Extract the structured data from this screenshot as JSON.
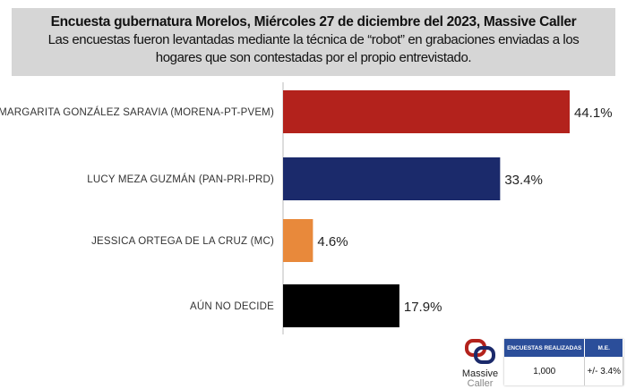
{
  "header": {
    "title": "Encuesta gubernatura Morelos, Miércoles 27 de diciembre del 2023, Massive Caller",
    "subtitle": "Las encuestas fueron levantadas mediante la técnica de “robot” en grabaciones enviadas a los hogares que son contestadas por el propio entrevistado."
  },
  "chart_data": {
    "type": "bar",
    "orientation": "horizontal",
    "title": "Encuesta gubernatura Morelos, Miércoles 27 de diciembre del 2023, Massive Caller",
    "categories": [
      "MARGARITA GONZÁLEZ SARAVIA (MORENA-PT-PVEM)",
      "LUCY MEZA GUZMÁN (PAN-PRI-PRD)",
      "JESSICA ORTEGA  DE LA CRUZ (MC)",
      "AÚN NO DECIDE"
    ],
    "values": [
      44.1,
      33.4,
      4.6,
      17.9
    ],
    "value_labels": [
      "44.1%",
      "33.4%",
      "4.6%",
      "17.9%"
    ],
    "colors": [
      "#b3221c",
      "#1b2a6b",
      "#e8893b",
      "#000000"
    ],
    "xlim": [
      0,
      50
    ],
    "grid": false
  },
  "logo": {
    "line1": "Massive",
    "line2": "Caller"
  },
  "table": {
    "headers": [
      "ENCUESTAS REALIZADAS",
      "M.E."
    ],
    "values": [
      "1,000",
      "+/- 3.4%"
    ]
  }
}
